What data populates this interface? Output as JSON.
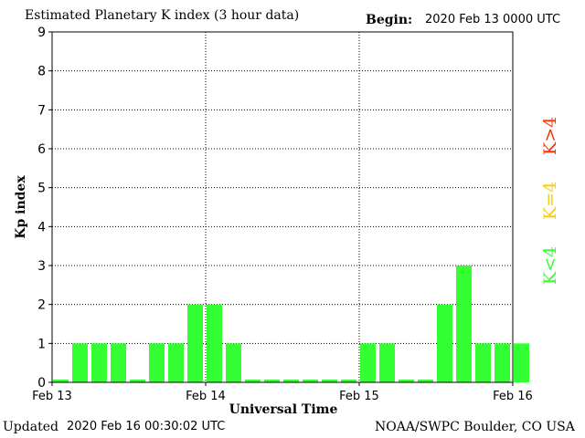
{
  "header": {
    "title": "Estimated Planetary K index (3 hour data)",
    "begin_label": "Begin:",
    "begin_value": "2020 Feb 13 0000 UTC"
  },
  "footer": {
    "updated_label": "Updated",
    "updated_value": "2020 Feb 16 00:30:02 UTC",
    "credit": "NOAA/SWPC Boulder, CO USA"
  },
  "legend": [
    {
      "label": "K<4",
      "color": "#33ff33"
    },
    {
      "label": "K=4",
      "color": "#ffcc00"
    },
    {
      "label": "K>4",
      "color": "#ff3300"
    }
  ],
  "chart_data": {
    "type": "bar",
    "title": "Estimated Planetary K index (3 hour data)",
    "xlabel": "Universal Time",
    "ylabel": "Kp index",
    "ylim": [
      0,
      9
    ],
    "yticks": [
      0,
      1,
      2,
      3,
      4,
      5,
      6,
      7,
      8,
      9
    ],
    "xticks": [
      "Feb 13",
      "Feb 14",
      "Feb 15",
      "Feb 16"
    ],
    "interval_hours": 3,
    "grid": true,
    "bar_color": "#33ff33",
    "values": [
      0,
      1,
      1,
      1,
      0,
      1,
      1,
      2,
      2,
      1,
      0,
      0,
      0,
      0,
      0,
      0,
      1,
      1,
      0,
      0,
      2,
      3,
      1,
      1,
      1
    ]
  }
}
